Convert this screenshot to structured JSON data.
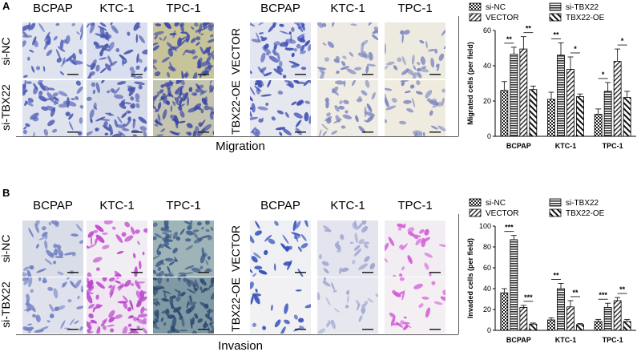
{
  "panelA": {
    "letter": "A",
    "col_headers_left": [
      "BCPAP",
      "KTC-1",
      "TPC-1"
    ],
    "col_headers_right": [
      "BCPAP",
      "KTC-1",
      "TPC-1"
    ],
    "row_labels_left": [
      "si-NC",
      "si-TBX22"
    ],
    "row_labels_right": [
      "VECTOR",
      "TBX22-OE"
    ],
    "subtitle": "Migration"
  },
  "panelB": {
    "letter": "B",
    "col_headers_left": [
      "BCPAP",
      "KTC-1",
      "TPC-1"
    ],
    "col_headers_right": [
      "BCPAP",
      "KTC-1",
      "TPC-1"
    ],
    "row_labels_left": [
      "si-NC",
      "si-TBX22"
    ],
    "row_labels_right": [
      "VECTOR",
      "TBX22-OE"
    ],
    "subtitle": "Invasion"
  },
  "colors": {
    "crystal_violet": "#6f7fcc",
    "magenta_stain": "#d35ad9",
    "background_cells": "#e9ecf3",
    "olive_bg": "#c9c69a",
    "teal_bg": "#8aa7ac"
  },
  "chart_data": [
    {
      "type": "bar",
      "title": "",
      "xlabel": "",
      "ylabel": "Migrated cells (per field)",
      "ylim": [
        0,
        60
      ],
      "yticks": [
        0,
        20,
        40,
        60
      ],
      "categories": [
        "BCPAP",
        "KTC-1",
        "TPC-1"
      ],
      "legend": [
        "si-NC",
        "si-TBX22",
        "VECTOR",
        "TBX22-OE"
      ],
      "legend_position": "top",
      "series": [
        {
          "name": "si-NC",
          "values": [
            26,
            21,
            12.5
          ],
          "errors": [
            5,
            4,
            3
          ]
        },
        {
          "name": "si-TBX22",
          "values": [
            46.5,
            46,
            25.5
          ],
          "errors": [
            4,
            7,
            5
          ]
        },
        {
          "name": "VECTOR",
          "values": [
            49.5,
            38,
            42.5
          ],
          "errors": [
            7,
            7,
            7
          ]
        },
        {
          "name": "TBX22-OE",
          "values": [
            26.5,
            22.5,
            22
          ],
          "errors": [
            2,
            1.5,
            3.5
          ]
        }
      ],
      "significance": [
        {
          "category": "BCPAP",
          "pair": "left",
          "label": "**"
        },
        {
          "category": "BCPAP",
          "pair": "right",
          "label": "**"
        },
        {
          "category": "KTC-1",
          "pair": "left",
          "label": "**"
        },
        {
          "category": "KTC-1",
          "pair": "right",
          "label": "*"
        },
        {
          "category": "TPC-1",
          "pair": "left",
          "label": "*"
        },
        {
          "category": "TPC-1",
          "pair": "right",
          "label": "*"
        }
      ]
    },
    {
      "type": "bar",
      "title": "",
      "xlabel": "",
      "ylabel": "Invaded cells (per field)",
      "ylim": [
        0,
        100
      ],
      "yticks": [
        0,
        20,
        40,
        60,
        80,
        100
      ],
      "categories": [
        "BCPAP",
        "KTC-1",
        "TPC-1"
      ],
      "legend": [
        "si-NC",
        "si-TBX22",
        "VECTOR",
        "TBX22-OE"
      ],
      "legend_position": "top",
      "series": [
        {
          "name": "si-NC",
          "values": [
            36,
            10,
            8.5
          ],
          "errors": [
            4,
            2,
            2
          ]
        },
        {
          "name": "si-TBX22",
          "values": [
            87,
            40,
            22
          ],
          "errors": [
            4,
            5,
            4
          ]
        },
        {
          "name": "VECTOR",
          "values": [
            22,
            22.5,
            28.5
          ],
          "errors": [
            2,
            6,
            3
          ]
        },
        {
          "name": "TBX22-OE",
          "values": [
            6,
            5.5,
            8.5
          ],
          "errors": [
            1,
            1,
            2
          ]
        }
      ],
      "significance": [
        {
          "category": "BCPAP",
          "pair": "left",
          "label": "***"
        },
        {
          "category": "BCPAP",
          "pair": "right",
          "label": "***"
        },
        {
          "category": "KTC-1",
          "pair": "left",
          "label": "**"
        },
        {
          "category": "KTC-1",
          "pair": "right",
          "label": "**"
        },
        {
          "category": "TPC-1",
          "pair": "left",
          "label": "***"
        },
        {
          "category": "TPC-1",
          "pair": "right",
          "label": "**"
        }
      ]
    }
  ]
}
